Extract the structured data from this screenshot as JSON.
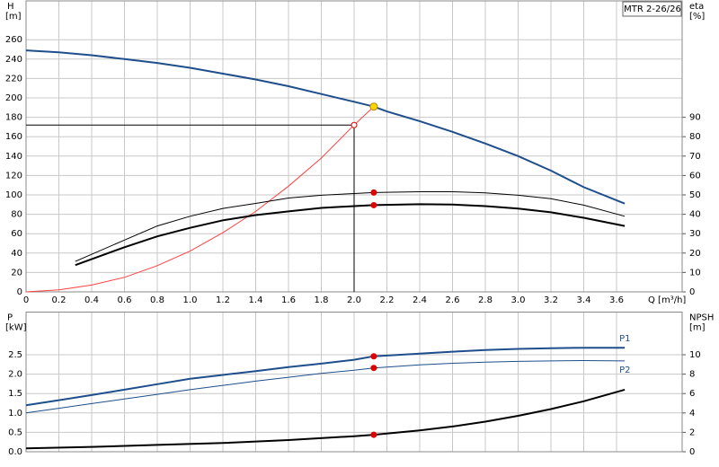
{
  "chart_data": [
    {
      "type": "line",
      "title": "MTR 2-26/26",
      "y_label": "H",
      "y_unit": "[m]",
      "y2_label": "eta",
      "y2_unit": "[%]",
      "x_label": "Q [m³/h]",
      "xlim": [
        0,
        4.0
      ],
      "ylim": [
        0,
        300
      ],
      "y2lim": [
        0,
        150
      ],
      "grid": true,
      "show_xtick_labels": true,
      "xticks": [
        0,
        0.2,
        0.4,
        0.6,
        0.8,
        {
          "value": 1,
          "label": "1.0"
        },
        1.2,
        1.4,
        1.6,
        1.8,
        {
          "value": 2,
          "label": "2.0"
        },
        2.2,
        2.4,
        2.6,
        2.8,
        {
          "value": 3,
          "label": "3.0"
        },
        3.2,
        3.4,
        3.6
      ],
      "yticks": [
        0,
        20,
        40,
        60,
        80,
        100,
        120,
        140,
        160,
        180,
        200,
        220,
        240,
        260
      ],
      "y2ticks": [
        0,
        10,
        20,
        30,
        40,
        50,
        60,
        70,
        80,
        90
      ],
      "series": [
        {
          "color": "#1f4e8c",
          "x": [
            0,
            0.2,
            0.4,
            0.6,
            0.8,
            1.0,
            1.2,
            1.4,
            1.6,
            1.8,
            2.0,
            2.12,
            2.2,
            2.4,
            2.6,
            2.8,
            3.0,
            3.2,
            3.4,
            3.65
          ],
          "values": [
            249,
            247,
            244,
            240,
            236,
            231,
            225,
            219,
            212,
            204,
            196,
            191,
            186,
            176,
            165,
            153,
            140,
            125,
            108,
            91
          ]
        },
        {
          "color": "#ff4040",
          "x": [
            0,
            0.2,
            0.4,
            0.6,
            0.8,
            1.0,
            1.2,
            1.4,
            1.6,
            1.8,
            2.0,
            2.12
          ],
          "values": [
            0,
            2,
            7,
            15,
            27,
            42,
            61,
            83,
            109,
            138,
            172,
            191
          ]
        },
        {
          "color": "#000000",
          "axis": "y2",
          "x": [
            0.3,
            0.6,
            0.8,
            1.0,
            1.2,
            1.4,
            1.6,
            1.8,
            2.0,
            2.12,
            2.4,
            2.6,
            2.8,
            3.0,
            3.2,
            3.4,
            3.65
          ],
          "values": [
            15.7,
            26.7,
            34,
            39,
            43,
            45.6,
            48.4,
            49.8,
            50.7,
            51.2,
            51.6,
            51.6,
            51,
            49.8,
            48,
            44.7,
            39
          ]
        },
        {
          "color": "#000000",
          "axis": "y2",
          "x": [
            0.3,
            0.6,
            0.8,
            1.0,
            1.2,
            1.4,
            1.6,
            1.8,
            2.0,
            2.12,
            2.4,
            2.6,
            2.8,
            3.0,
            3.2,
            3.4,
            3.65
          ],
          "values": [
            13.8,
            23,
            28.6,
            33,
            36.9,
            39.6,
            41.5,
            43.3,
            44.2,
            44.7,
            45.2,
            45,
            44.2,
            42.9,
            41,
            38.2,
            34
          ]
        }
      ],
      "points": [
        {
          "x": 2.12,
          "y": 191,
          "color": "#ffd700"
        },
        {
          "x": 2.12,
          "y": 51.2,
          "axis": "y2",
          "color": "#e00000"
        },
        {
          "x": 2.12,
          "y": 44.7,
          "axis": "y2",
          "color": "#e00000"
        }
      ],
      "reference_point": {
        "x": 2.0,
        "y": 172
      }
    },
    {
      "type": "line",
      "y_label": "P",
      "y_unit": "[kW]",
      "y2_label": "NPSH",
      "y2_unit": "[m]",
      "xlim": [
        0,
        4.0
      ],
      "ylim": [
        0,
        3.6
      ],
      "y2lim": [
        0,
        14.4
      ],
      "grid": true,
      "show_xtick_labels": false,
      "xticks": [
        0,
        0.2,
        0.4,
        0.6,
        0.8,
        1.0,
        1.2,
        1.4,
        1.6,
        1.8,
        2.0,
        2.2,
        2.4,
        2.6,
        2.8,
        3.0,
        3.2,
        3.4,
        3.6
      ],
      "yticks": [
        {
          "value": 0,
          "label": "0.0"
        },
        0.5,
        {
          "value": 1,
          "label": "1.0"
        },
        1.5,
        {
          "value": 2,
          "label": "2.0"
        },
        2.5
      ],
      "y2ticks": [
        0,
        2,
        4,
        6,
        8,
        10
      ],
      "series": [
        {
          "name": "P1",
          "color": "#1f4e8c",
          "x": [
            0,
            0.2,
            0.4,
            0.6,
            0.8,
            1.0,
            1.2,
            1.4,
            1.6,
            1.8,
            2.0,
            2.12,
            2.4,
            2.6,
            2.8,
            3.0,
            3.2,
            3.4,
            3.65
          ],
          "values": [
            1.2,
            1.33,
            1.46,
            1.6,
            1.74,
            1.88,
            1.98,
            2.08,
            2.18,
            2.27,
            2.37,
            2.46,
            2.53,
            2.58,
            2.62,
            2.65,
            2.67,
            2.68,
            2.68
          ]
        },
        {
          "name": "P2",
          "color": "#1f4e8c",
          "x": [
            0,
            0.2,
            0.4,
            0.6,
            0.8,
            1.0,
            1.2,
            1.4,
            1.6,
            1.8,
            2.0,
            2.12,
            2.4,
            2.6,
            2.8,
            3.0,
            3.2,
            3.4,
            3.65
          ],
          "values": [
            1.0,
            1.12,
            1.24,
            1.36,
            1.48,
            1.6,
            1.71,
            1.82,
            1.92,
            2.02,
            2.1,
            2.16,
            2.24,
            2.28,
            2.31,
            2.33,
            2.34,
            2.35,
            2.34
          ]
        },
        {
          "color": "#000000",
          "axis": "y2",
          "x": [
            0,
            0.4,
            0.8,
            1.2,
            1.6,
            2.0,
            2.12,
            2.4,
            2.6,
            2.8,
            3.0,
            3.2,
            3.4,
            3.65
          ],
          "values": [
            0.35,
            0.5,
            0.7,
            0.9,
            1.2,
            1.6,
            1.75,
            2.2,
            2.6,
            3.1,
            3.7,
            4.4,
            5.2,
            6.4
          ]
        }
      ],
      "points": [
        {
          "x": 2.12,
          "y": 2.46,
          "color": "#e00000"
        },
        {
          "x": 2.12,
          "y": 2.16,
          "color": "#e00000"
        },
        {
          "x": 2.12,
          "y": 1.75,
          "axis": "y2",
          "color": "#e00000"
        }
      ]
    }
  ]
}
